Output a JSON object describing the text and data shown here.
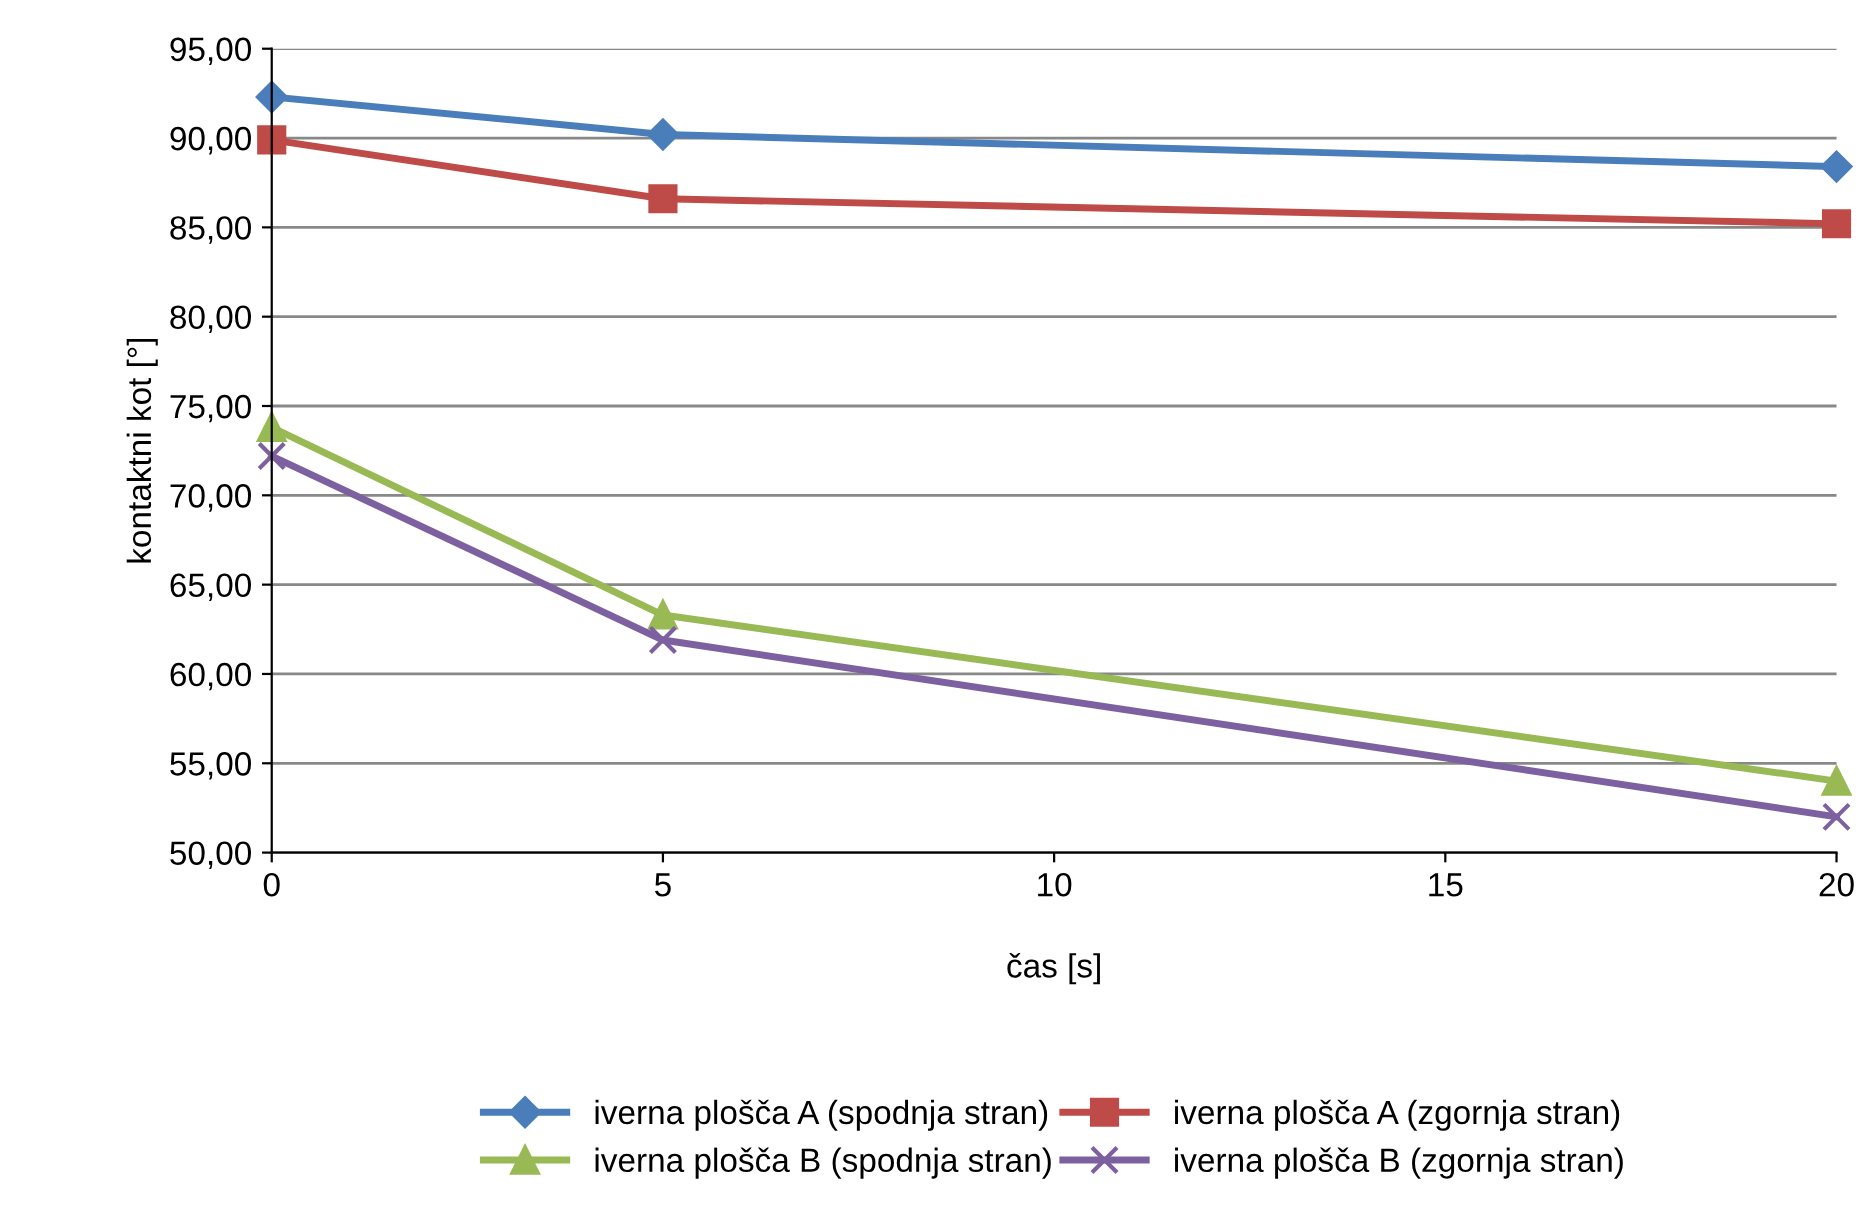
{
  "chart_data": {
    "type": "line",
    "xlabel": "čas [s]",
    "ylabel": "kontaktni kot [°]",
    "x": [
      0,
      5,
      20
    ],
    "series": [
      {
        "name": "iverna plošča A (spodnja stran)",
        "color": "#4a7ebb",
        "marker": "diamond",
        "values": [
          92.3,
          90.2,
          88.4
        ]
      },
      {
        "name": "iverna plošča A (zgornja stran)",
        "color": "#be4b48",
        "marker": "square",
        "values": [
          89.9,
          86.6,
          85.2
        ]
      },
      {
        "name": "iverna plošča B (spodnja stran)",
        "color": "#98b954",
        "marker": "triangle",
        "values": [
          73.8,
          63.3,
          54.0
        ]
      },
      {
        "name": "iverna plošča B (zgornja stran)",
        "color": "#7d60a0",
        "marker": "cross",
        "values": [
          72.2,
          61.9,
          52.0
        ]
      }
    ],
    "xlim": [
      0,
      20
    ],
    "xticks": [
      0,
      5,
      10,
      15,
      20
    ],
    "ylim": [
      50,
      95
    ],
    "yticks": [
      {
        "value": 50,
        "label": "50,00"
      },
      {
        "value": 55,
        "label": "55,00"
      },
      {
        "value": 60,
        "label": "60,00"
      },
      {
        "value": 65,
        "label": "65,00"
      },
      {
        "value": 70,
        "label": "70,00"
      },
      {
        "value": 75,
        "label": "75,00"
      },
      {
        "value": 80,
        "label": "80,00"
      },
      {
        "value": 85,
        "label": "85,00"
      },
      {
        "value": 90,
        "label": "90,00"
      },
      {
        "value": 95,
        "label": "95,00"
      }
    ],
    "grid": "y",
    "legend": "bottom",
    "line_style": "solid"
  }
}
